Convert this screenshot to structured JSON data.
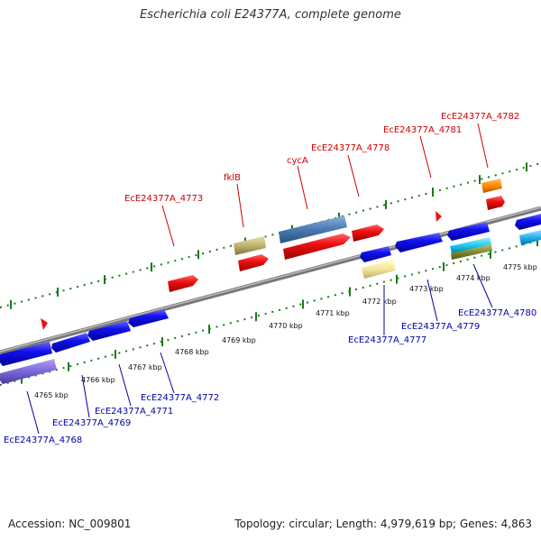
{
  "title": "Escherichia coli E24377A, complete genome",
  "accession": "Accession: NC_009801",
  "summary": "Topology: circular; Length: 4,979,619 bp; Genes: 4,863",
  "kbp_labels": [
    "4765 kbp",
    "4766 kbp",
    "4767 kbp",
    "4768 kbp",
    "4769 kbp",
    "4770 kbp",
    "4771 kbp",
    "4772 kbp",
    "4773 kbp",
    "4774 kbp",
    "4775 kbp"
  ],
  "genes_top": [
    {
      "name": "EcE24377A_4773"
    },
    {
      "name": "fklB"
    },
    {
      "name": "cycA"
    },
    {
      "name": "EcE24377A_4778"
    },
    {
      "name": "EcE24377A_4781"
    },
    {
      "name": "EcE24377A_4782"
    }
  ],
  "genes_bottom": [
    {
      "name": "EcE24377A_4768"
    },
    {
      "name": "EcE24377A_4769"
    },
    {
      "name": "EcE24377A_4771"
    },
    {
      "name": "EcE24377A_4772"
    },
    {
      "name": "EcE24377A_4777"
    },
    {
      "name": "EcE24377A_4779"
    },
    {
      "name": "EcE24377A_4780"
    }
  ],
  "colors": {
    "forward_label": "#cc0000",
    "reverse_label": "#0000aa",
    "forward_gene": "#ee1111",
    "reverse_gene": "#1111ee",
    "tick": "#1a7a1a",
    "backbone": "#888888"
  }
}
